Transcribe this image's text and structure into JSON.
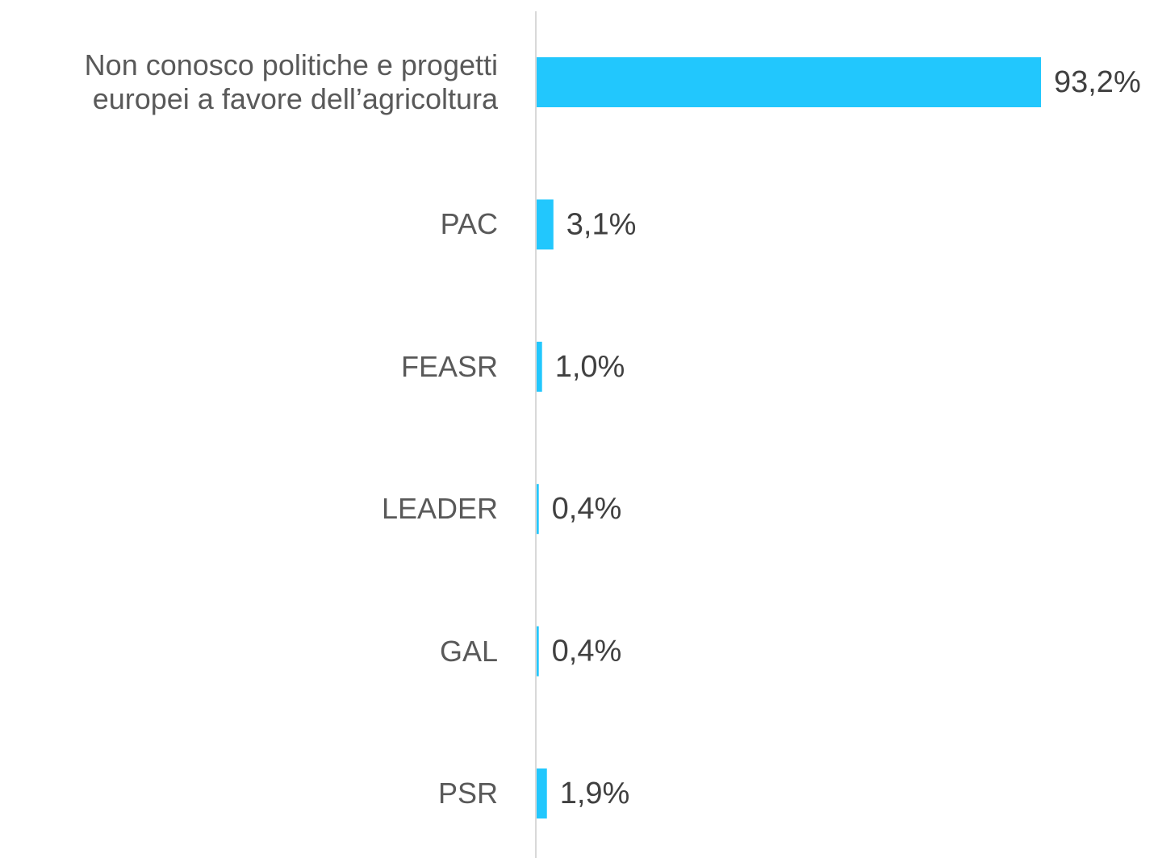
{
  "chart_data": {
    "type": "bar",
    "orientation": "horizontal",
    "categories": [
      "Non conosco politiche e progetti europei a favore dell’agricoltura",
      "PAC",
      "FEASR",
      "LEADER",
      "GAL",
      "PSR"
    ],
    "values": [
      93.2,
      3.1,
      1.0,
      0.4,
      0.4,
      1.9
    ],
    "value_labels": [
      "93,2%",
      "3,1%",
      "1,0%",
      "0,4%",
      "0,4%",
      "1,9%"
    ],
    "color": "#22c7fd",
    "xlim": [
      0,
      100
    ]
  }
}
